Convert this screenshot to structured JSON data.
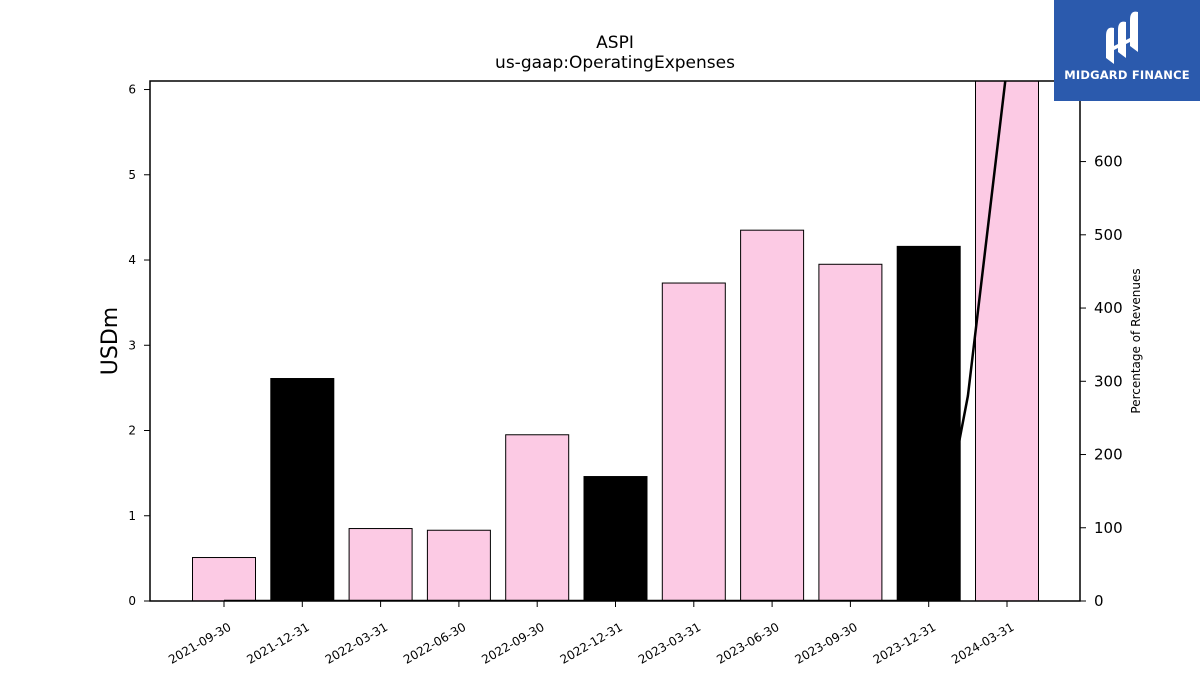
{
  "chart_data": {
    "type": "bar",
    "title": "ASPI",
    "subtitle": "us-gaap:OperatingExpenses",
    "ylabel": "USDm",
    "ylabel_right": "Percentage of Revenues",
    "categories": [
      "2021-09-30",
      "2021-12-31",
      "2022-03-31",
      "2022-06-30",
      "2022-09-30",
      "2022-12-31",
      "2023-03-31",
      "2023-06-30",
      "2023-09-30",
      "2023-12-31",
      "2024-03-31"
    ],
    "values": [
      0.51,
      2.61,
      0.85,
      0.83,
      1.95,
      1.46,
      3.73,
      4.35,
      3.95,
      4.16,
      6.1
    ],
    "bar_colors": [
      "#fccae4",
      "#000000",
      "#fccae4",
      "#fccae4",
      "#fccae4",
      "#000000",
      "#fccae4",
      "#fccae4",
      "#fccae4",
      "#000000",
      "#fccae4"
    ],
    "ylim": [
      0,
      6.1
    ],
    "yticks": [
      0,
      1,
      2,
      3,
      4,
      5,
      6
    ],
    "right_axis": {
      "ylim": [
        0,
        710
      ],
      "yticks": [
        0,
        100,
        200,
        300,
        400,
        500,
        600,
        700
      ],
      "line_values": [
        0,
        0,
        0,
        0,
        0,
        0,
        0,
        0,
        0,
        0,
        0,
        0,
        0,
        0,
        0,
        0,
        0,
        0,
        0,
        280,
        730
      ],
      "line_color": "#000000"
    },
    "grid": false
  },
  "logo": {
    "text": "MIDGARD FINANCE",
    "background": "#2b5aad"
  }
}
